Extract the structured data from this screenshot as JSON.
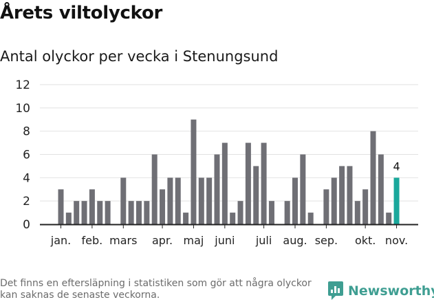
{
  "header": {
    "title": "Årets viltolyckor"
  },
  "chart_data": {
    "type": "bar",
    "title": "Antal olyckor per vecka i Stenungsund",
    "xlabel": "",
    "ylabel": "",
    "ylim": [
      0,
      12
    ],
    "yticks": [
      "0",
      "2",
      "4",
      "6",
      "8",
      "10",
      "12"
    ],
    "x_axis_labels": [
      {
        "label": "jan.",
        "week": 1
      },
      {
        "label": "feb.",
        "week": 5
      },
      {
        "label": "mars",
        "week": 9
      },
      {
        "label": "apr.",
        "week": 14
      },
      {
        "label": "maj",
        "week": 18
      },
      {
        "label": "juni",
        "week": 22
      },
      {
        "label": "juli",
        "week": 27
      },
      {
        "label": "aug.",
        "week": 31
      },
      {
        "label": "sep.",
        "week": 35
      },
      {
        "label": "okt.",
        "week": 40
      },
      {
        "label": "nov.",
        "week": 44
      }
    ],
    "weeks": [
      1,
      2,
      3,
      4,
      5,
      6,
      7,
      8,
      9,
      10,
      11,
      12,
      13,
      14,
      15,
      16,
      17,
      18,
      19,
      20,
      21,
      22,
      23,
      24,
      25,
      26,
      27,
      28,
      29,
      30,
      31,
      32,
      33,
      34,
      35,
      36,
      37,
      38,
      39,
      40,
      41,
      42,
      43,
      44
    ],
    "values": [
      3,
      1,
      2,
      2,
      3,
      2,
      2,
      0,
      4,
      2,
      2,
      2,
      6,
      3,
      4,
      4,
      1,
      9,
      4,
      4,
      6,
      7,
      1,
      2,
      7,
      5,
      7,
      2,
      0,
      2,
      4,
      6,
      1,
      0,
      3,
      4,
      5,
      5,
      2,
      3,
      8,
      6,
      1,
      4
    ],
    "highlight": {
      "week": 44,
      "value": 4,
      "label": "4"
    },
    "colors": {
      "bar": "#6f6f75",
      "highlight": "#1aa89c",
      "grid": "#e2e2e2",
      "axis": "#222222"
    }
  },
  "footer": {
    "note": "Det finns en eftersläpning i statistiken som gör att några olyckor kan saknas de senaste veckorna.",
    "brand": "Newsworthy",
    "brand_icon": "newsworthy-logo-icon"
  }
}
